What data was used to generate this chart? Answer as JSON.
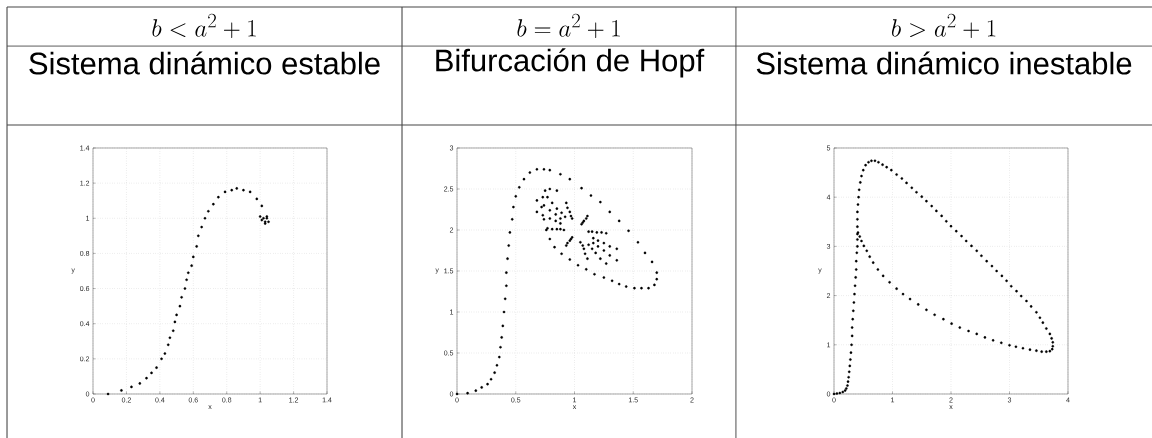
{
  "chart_data": [
    {
      "type": "scatter",
      "title": "b < a^2 + 1",
      "subtitle": "Sistema dinámico estable",
      "xlabel": "x",
      "ylabel": "y",
      "color": "#000000",
      "marker": "circle",
      "grid": true,
      "xlim": [
        0,
        1.4
      ],
      "ylim": [
        0,
        1.4
      ],
      "xticks": [
        0,
        0.2,
        0.4,
        0.6,
        0.8,
        1,
        1.2,
        1.4
      ],
      "yticks": [
        0,
        0.2,
        0.4,
        0.6,
        0.8,
        1,
        1.2,
        1.4
      ],
      "x": [
        0.09,
        0.17,
        0.23,
        0.28,
        0.32,
        0.35,
        0.38,
        0.41,
        0.43,
        0.45,
        0.46,
        0.48,
        0.49,
        0.5,
        0.52,
        0.53,
        0.55,
        0.56,
        0.57,
        0.59,
        0.6,
        0.62,
        0.63,
        0.65,
        0.67,
        0.69,
        0.72,
        0.75,
        0.79,
        0.83,
        0.86,
        0.9,
        0.94,
        0.98,
        1.01,
        1.04,
        1.05,
        1.03,
        1.01,
        1.0,
        1.02,
        1.04,
        1.03
      ],
      "values": [
        0,
        0.02,
        0.04,
        0.06,
        0.09,
        0.12,
        0.15,
        0.2,
        0.23,
        0.28,
        0.32,
        0.36,
        0.41,
        0.45,
        0.5,
        0.55,
        0.6,
        0.65,
        0.69,
        0.73,
        0.78,
        0.84,
        0.9,
        0.95,
        1.0,
        1.04,
        1.08,
        1.12,
        1.15,
        1.16,
        1.17,
        1.16,
        1.15,
        1.11,
        1.07,
        1.01,
        0.98,
        0.97,
        0.99,
        1.01,
        1.0,
        1.0,
        0.98
      ]
    },
    {
      "type": "scatter",
      "title": "b = a^2 + 1",
      "subtitle": "Bifurcación de Hopf",
      "xlabel": "x",
      "ylabel": "y",
      "color": "#000000",
      "marker": "circle",
      "grid": true,
      "xlim": [
        0,
        2
      ],
      "ylim": [
        0,
        3
      ],
      "xticks": [
        0,
        0.5,
        1,
        1.5,
        2
      ],
      "yticks": [
        0,
        0.5,
        1,
        1.5,
        2,
        2.5,
        3
      ],
      "x": [
        0,
        0.09,
        0.16,
        0.21,
        0.26,
        0.29,
        0.32,
        0.34,
        0.36,
        0.37,
        0.38,
        0.39,
        0.4,
        0.41,
        0.42,
        0.42,
        0.43,
        0.44,
        0.45,
        0.47,
        0.48,
        0.5,
        0.53,
        0.57,
        0.62,
        0.68,
        0.74,
        0.79,
        0.88,
        0.96,
        1.06,
        1.14,
        1.22,
        1.3,
        1.38,
        1.46,
        1.54,
        1.6,
        1.66,
        1.7,
        1.7,
        1.68,
        1.63,
        1.57,
        1.51,
        1.44,
        1.38,
        1.32,
        1.25,
        1.17,
        1.1,
        1.03,
        0.96,
        0.89,
        0.83,
        0.79,
        0.76,
        0.74,
        0.72,
        0.73,
        0.75,
        0.79,
        0.85,
        0.77,
        0.93,
        1.11,
        1.27,
        1.36,
        1.36,
        1.27,
        1.11,
        0.93,
        0.77,
        0.68,
        0.68,
        0.81,
        0.94,
        1.1,
        1.23,
        1.3,
        1.3,
        1.22,
        1.09,
        0.94,
        0.81,
        0.73,
        0.74,
        0.85,
        0.96,
        1.08,
        1.19,
        1.25,
        1.25,
        1.18,
        1.08,
        0.96,
        0.85,
        0.79,
        0.79,
        0.89,
        0.97,
        1.07,
        1.15,
        1.2,
        1.2,
        1.15,
        1.07,
        0.97,
        0.88,
        0.84,
        0.84,
        0.92,
        0.98,
        1.06,
        1.12,
        1.16,
        1.16,
        1.12,
        1.05,
        0.98,
        0.91,
        0.88,
        0.88
      ],
      "values": [
        0,
        0.01,
        0.04,
        0.08,
        0.12,
        0.18,
        0.26,
        0.35,
        0.45,
        0.57,
        0.69,
        0.83,
        1.0,
        1.16,
        1.32,
        1.48,
        1.65,
        1.81,
        1.97,
        2.13,
        2.28,
        2.41,
        2.52,
        2.62,
        2.7,
        2.74,
        2.74,
        2.73,
        2.68,
        2.62,
        2.51,
        2.42,
        2.34,
        2.22,
        2.11,
        1.99,
        1.85,
        1.72,
        1.61,
        1.48,
        1.4,
        1.33,
        1.29,
        1.29,
        1.29,
        1.31,
        1.34,
        1.38,
        1.42,
        1.46,
        1.52,
        1.57,
        1.64,
        1.71,
        1.79,
        1.89,
        2.0,
        2.13,
        2.28,
        2.4,
        2.48,
        2.5,
        2.48,
        2.4,
        2.33,
        2.17,
        1.96,
        1.77,
        1.63,
        1.59,
        1.65,
        1.81,
        2.02,
        2.22,
        2.36,
        2.33,
        2.27,
        2.14,
        1.97,
        1.8,
        1.69,
        1.65,
        1.71,
        1.84,
        2.01,
        2.18,
        2.3,
        2.26,
        2.22,
        2.11,
        1.97,
        1.84,
        1.75,
        1.72,
        1.77,
        1.87,
        2.01,
        2.14,
        2.24,
        2.21,
        2.17,
        2.09,
        1.98,
        1.87,
        1.8,
        1.77,
        1.81,
        1.89,
        2.01,
        2.11,
        2.19,
        2.16,
        2.14,
        2.07,
        1.98,
        1.9,
        1.84,
        1.82,
        1.85,
        1.91,
        2.0,
        2.08,
        2.14
      ]
    },
    {
      "type": "scatter",
      "title": "b > a^2 + 1",
      "subtitle": "Sistema dinámico inestable",
      "xlabel": "x",
      "ylabel": "y",
      "color": "#000000",
      "marker": "circle",
      "grid": true,
      "xlim": [
        0,
        4
      ],
      "ylim": [
        0,
        5
      ],
      "xticks": [
        0,
        1,
        2,
        3,
        4
      ],
      "yticks": [
        0,
        1,
        2,
        3,
        4,
        5
      ],
      "x": [
        0,
        0.05,
        0.1,
        0.15,
        0.19,
        0.21,
        0.23,
        0.24,
        0.25,
        0.26,
        0.27,
        0.28,
        0.29,
        0.3,
        0.31,
        0.31,
        0.32,
        0.33,
        0.34,
        0.35,
        0.36,
        0.37,
        0.38,
        0.38,
        0.39,
        0.4,
        0.4,
        0.4,
        0.4,
        0.4,
        0.4,
        0.41,
        0.42,
        0.43,
        0.45,
        0.47,
        0.5,
        0.54,
        0.59,
        0.64,
        0.7,
        0.76,
        0.83,
        0.9,
        0.98,
        1.07,
        1.16,
        1.24,
        1.33,
        1.41,
        1.5,
        1.58,
        1.67,
        1.75,
        1.84,
        1.92,
        2.0,
        2.09,
        2.18,
        2.26,
        2.35,
        2.44,
        2.52,
        2.61,
        2.7,
        2.78,
        2.87,
        2.95,
        3.03,
        3.12,
        3.2,
        3.29,
        3.37,
        3.46,
        3.52,
        3.57,
        3.63,
        3.69,
        3.72,
        3.74,
        3.74,
        3.73,
        3.69,
        3.63,
        3.55,
        3.46,
        3.35,
        3.23,
        3.11,
        3.0,
        2.86,
        2.72,
        2.58,
        2.44,
        2.3,
        2.15,
        2.01,
        1.87,
        1.72,
        1.58,
        1.44,
        1.3,
        1.18,
        1.07,
        0.95,
        0.84,
        0.75,
        0.67,
        0.61,
        0.56,
        0.51,
        0.47,
        0.44,
        0.41
      ],
      "values": [
        0,
        0.01,
        0.02,
        0.04,
        0.07,
        0.11,
        0.17,
        0.25,
        0.34,
        0.45,
        0.57,
        0.7,
        0.84,
        1.0,
        1.18,
        1.35,
        1.52,
        1.69,
        1.86,
        2.03,
        2.2,
        2.37,
        2.53,
        2.7,
        2.87,
        3.0,
        3.14,
        3.25,
        3.4,
        3.55,
        3.7,
        3.85,
        4.0,
        4.15,
        4.3,
        4.43,
        4.55,
        4.65,
        4.71,
        4.74,
        4.74,
        4.71,
        4.66,
        4.61,
        4.55,
        4.46,
        4.38,
        4.29,
        4.19,
        4.1,
        4.01,
        3.92,
        3.82,
        3.72,
        3.62,
        3.51,
        3.41,
        3.31,
        3.21,
        3.11,
        3.01,
        2.91,
        2.81,
        2.7,
        2.6,
        2.5,
        2.4,
        2.3,
        2.19,
        2.09,
        1.99,
        1.89,
        1.78,
        1.66,
        1.55,
        1.45,
        1.33,
        1.22,
        1.13,
        1.05,
        0.97,
        0.91,
        0.87,
        0.86,
        0.86,
        0.88,
        0.9,
        0.93,
        0.96,
        0.99,
        1.04,
        1.09,
        1.15,
        1.22,
        1.28,
        1.35,
        1.43,
        1.52,
        1.61,
        1.71,
        1.82,
        1.93,
        2.03,
        2.14,
        2.27,
        2.4,
        2.53,
        2.67,
        2.79,
        2.91,
        3.01,
        3.11,
        3.2,
        3.28
      ]
    }
  ]
}
